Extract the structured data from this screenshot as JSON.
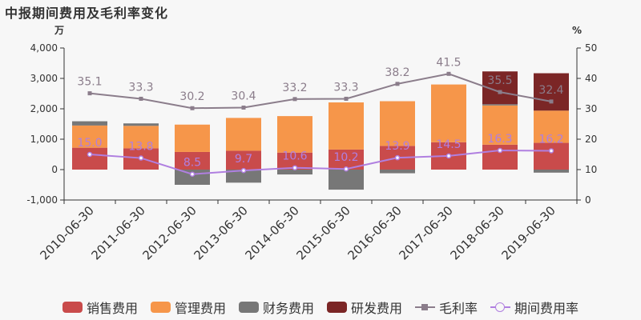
{
  "title": "中报期间费用及毛利率变化",
  "chart_data": {
    "type": "bar",
    "stacked": true,
    "categories": [
      "2010-06-30",
      "2011-06-30",
      "2012-06-30",
      "2013-06-30",
      "2014-06-30",
      "2015-06-30",
      "2016-06-30",
      "2017-06-30",
      "2018-06-30",
      "2019-06-30"
    ],
    "left_axis": {
      "unit": "万",
      "min": -1000,
      "max": 4000,
      "ticks": [
        -1000,
        0,
        1000,
        2000,
        3000,
        4000
      ],
      "tick_labels": [
        "-1,000",
        "0",
        "1,000",
        "2,000",
        "3,000",
        "4,000"
      ]
    },
    "right_axis": {
      "unit": "%",
      "min": 0,
      "max": 50,
      "ticks": [
        0,
        10,
        20,
        30,
        40,
        50
      ],
      "tick_labels": [
        "0",
        "10",
        "20",
        "30",
        "40",
        "50"
      ]
    },
    "bar_series": [
      {
        "name": "销售费用",
        "color": "#c94b4b",
        "values": [
          720,
          700,
          580,
          620,
          560,
          660,
          780,
          900,
          820,
          880
        ]
      },
      {
        "name": "管理费用",
        "color": "#f6964a",
        "values": [
          730,
          740,
          900,
          1080,
          1200,
          1550,
          1470,
          1900,
          1290,
          1060
        ]
      },
      {
        "name": "财务费用",
        "color": "#777777",
        "values": [
          140,
          80,
          -500,
          -430,
          -160,
          -660,
          -120,
          0,
          40,
          -100
        ]
      },
      {
        "name": "研发费用",
        "color": "#7b2626",
        "values": [
          0,
          0,
          0,
          0,
          0,
          0,
          0,
          0,
          1080,
          1230
        ]
      }
    ],
    "line_series": [
      {
        "name": "毛利率",
        "color": "#8b7d8b",
        "marker": "square",
        "values": [
          35.1,
          33.3,
          30.2,
          30.4,
          33.2,
          33.3,
          38.2,
          41.5,
          35.5,
          32.4
        ],
        "labels": [
          "35.1",
          "33.3",
          "30.2",
          "30.4",
          "33.2",
          "33.3",
          "38.2",
          "41.5",
          "35.5",
          "32.4"
        ]
      },
      {
        "name": "期间费用率",
        "color": "#b07fe0",
        "marker": "circle",
        "values": [
          15.0,
          13.8,
          8.5,
          9.7,
          10.6,
          10.2,
          13.9,
          14.5,
          16.3,
          16.2
        ],
        "labels": [
          "15.0",
          "13.8",
          "8.5",
          "9.7",
          "10.6",
          "10.2",
          "13.9",
          "14.5",
          "16.3",
          "16.2"
        ]
      }
    ],
    "legend_position": "bottom",
    "grid": false
  }
}
